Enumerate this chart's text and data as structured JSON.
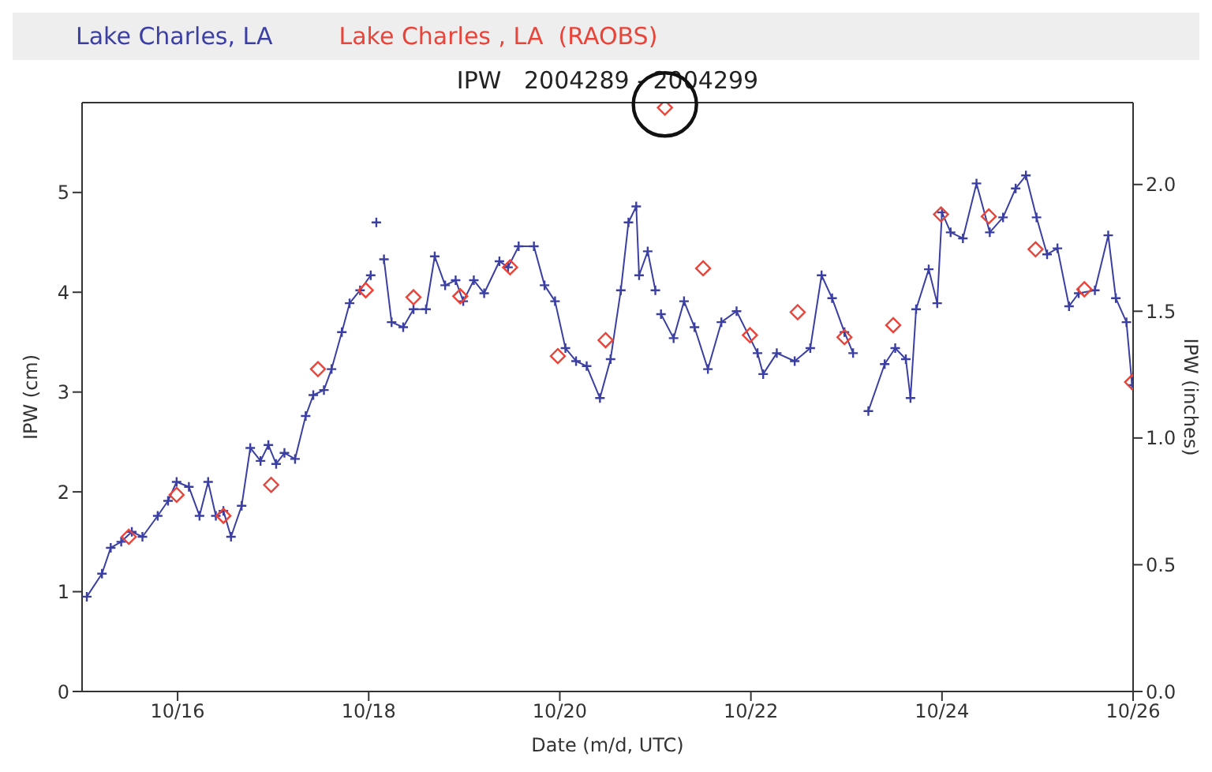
{
  "chart_data": {
    "type": "line",
    "title": "IPW   2004289 - 2004299",
    "xlabel": "Date (m/d, UTC)",
    "ylabel": "IPW (cm)",
    "y2label": "IPW (inches)",
    "legend": "top",
    "xlim": [
      "2004-10-15",
      "2004-10-26"
    ],
    "xticks": [
      {
        "value": "2004-10-16",
        "label": "10/16"
      },
      {
        "value": "2004-10-18",
        "label": "10/18"
      },
      {
        "value": "2004-10-20",
        "label": "10/20"
      },
      {
        "value": "2004-10-22",
        "label": "10/22"
      },
      {
        "value": "2004-10-24",
        "label": "10/24"
      },
      {
        "value": "2004-10-26",
        "label": "10/26"
      }
    ],
    "ylim": [
      0,
      5.9
    ],
    "yticks": [
      0,
      1,
      2,
      3,
      4,
      5
    ],
    "y2lim": [
      0,
      2.323
    ],
    "y2ticks": [
      {
        "value": 0,
        "label": "0.0"
      },
      {
        "value": 0.5,
        "label": "0.5"
      },
      {
        "value": 1,
        "label": "1.0"
      },
      {
        "value": 1.5,
        "label": "1.5"
      },
      {
        "value": 2,
        "label": "2.0"
      }
    ],
    "series": [
      {
        "name": "Lake Charles, LA",
        "type": "line",
        "color": "#3b3fa3",
        "marker": "cross",
        "line_style": "solid",
        "x": [
          "2004-10-15T01:12",
          "2004-10-15T05:00",
          "2004-10-15T07:12",
          "2004-10-15T09:50",
          "2004-10-15T12:30",
          "2004-10-15T15:10",
          "2004-10-15T19:00",
          "2004-10-15T21:36",
          "2004-10-15T23:45",
          "2004-10-16T02:50",
          "2004-10-16T05:30",
          "2004-10-16T07:40",
          "2004-10-16T09:36",
          "2004-10-16T11:30",
          "2004-10-16T13:25",
          "2004-10-16T16:05",
          "2004-10-16T18:15",
          "2004-10-16T20:50",
          "2004-10-16T22:48",
          "2004-10-17T00:45",
          "2004-10-17T02:50",
          "2004-10-17T05:30",
          "2004-10-17T08:10",
          "2004-10-17T10:05",
          "2004-10-17T12:45",
          "2004-10-17T14:40",
          "2004-10-17T17:15",
          "2004-10-17T19:12",
          "2004-10-17T21:50",
          "2004-10-18T00:30",
          "2004-10-18T01:12",
          "2004-10-18T01:55",
          "2004-10-18T02:50",
          "2004-10-18T03:50",
          "2004-10-18T05:45",
          "2004-10-18T08:40",
          "2004-10-18T11:15",
          "2004-10-18T14:24",
          "2004-10-18T16:35",
          "2004-10-18T19:12",
          "2004-10-18T21:50",
          "2004-10-18T23:45",
          "2004-10-19T02:24",
          "2004-10-19T05:00",
          "2004-10-19T08:50",
          "2004-10-19T11:00",
          "2004-10-19T13:40",
          "2004-10-19T17:30",
          "2004-10-19T20:10",
          "2004-10-19T22:48",
          "2004-10-20T01:25",
          "2004-10-20T04:05",
          "2004-10-20T06:45",
          "2004-10-20T10:05",
          "2004-10-20T12:45",
          "2004-10-20T15:20",
          "2004-10-20T17:15",
          "2004-10-20T19:12",
          "2004-10-20T19:55",
          "2004-10-20T22:05",
          "2004-10-21T00:00",
          "2004-10-21T00:45",
          "2004-10-21T01:25",
          "2004-10-21T04:35",
          "2004-10-21T07:12",
          "2004-10-21T09:50",
          "2004-10-21T13:12",
          "2004-10-21T16:35",
          "2004-10-21T20:24",
          "2004-10-22T01:40",
          "2004-10-22T03:05",
          "2004-10-22T06:30",
          "2004-10-22T11:00",
          "2004-10-22T14:55",
          "2004-10-22T17:45",
          "2004-10-22T20:24",
          "2004-10-22T23:30",
          "2004-10-23T01:40",
          "2004-10-23T03:36",
          "2004-10-23T05:30",
          "2004-10-23T09:36",
          "2004-10-23T12:15",
          "2004-10-23T14:55",
          "2004-10-23T16:05",
          "2004-10-23T17:30",
          "2004-10-23T20:40",
          "2004-10-23T22:48",
          "2004-10-24T00:00",
          "2004-10-24T02:10",
          "2004-10-24T05:15",
          "2004-10-24T08:40",
          "2004-10-24T12:00",
          "2004-10-24T15:20",
          "2004-10-24T18:30",
          "2004-10-24T21:05",
          "2004-10-24T23:45",
          "2004-10-25T02:24",
          "2004-10-25T05:00",
          "2004-10-25T07:55",
          "2004-10-25T10:20",
          "2004-10-25T14:24",
          "2004-10-25T17:45",
          "2004-10-25T19:40",
          "2004-10-25T22:20",
          "2004-10-25T23:45"
        ],
        "values": [
          0.95,
          1.18,
          1.44,
          1.5,
          1.6,
          1.55,
          1.76,
          1.91,
          2.1,
          2.05,
          1.76,
          2.1,
          1.76,
          1.81,
          1.55,
          1.86,
          2.44,
          2.31,
          2.47,
          2.28,
          2.39,
          2.33,
          2.76,
          2.97,
          3.02,
          3.23,
          3.6,
          3.89,
          4.02,
          4.17,
          null,
          4.7,
          null,
          4.33,
          3.7,
          3.65,
          3.83,
          3.83,
          4.36,
          4.07,
          4.12,
          3.91,
          4.12,
          3.99,
          4.31,
          4.25,
          4.46,
          4.46,
          4.07,
          3.91,
          3.44,
          3.31,
          3.26,
          2.94,
          3.33,
          4.02,
          4.7,
          4.86,
          4.17,
          4.41,
          4.02,
          null,
          3.78,
          3.54,
          3.91,
          3.65,
          3.23,
          3.7,
          3.81,
          3.39,
          3.18,
          3.39,
          3.31,
          3.44,
          4.17,
          3.94,
          3.6,
          3.39,
          null,
          2.81,
          3.28,
          3.44,
          3.33,
          2.94,
          3.83,
          4.23,
          3.89,
          4.8,
          4.6,
          4.54,
          5.09,
          4.6,
          4.75,
          5.04,
          5.17,
          4.75,
          4.38,
          4.44,
          3.86,
          3.99,
          4.02,
          4.57,
          3.94,
          3.7,
          3.07
        ]
      },
      {
        "name": "Lake Charles , LA  (RAOBS)",
        "type": "scatter",
        "color": "#e8443a",
        "marker": "diamond",
        "x": [
          "2004-10-15T11:45",
          "2004-10-15T23:45",
          "2004-10-16T11:30",
          "2004-10-16T23:30",
          "2004-10-17T11:15",
          "2004-10-17T23:15",
          "2004-10-18T11:15",
          "2004-10-18T23:00",
          "2004-10-19T11:30",
          "2004-10-19T23:30",
          "2004-10-20T11:30",
          "2004-10-21T02:24",
          "2004-10-21T12:00",
          "2004-10-21T23:45",
          "2004-10-22T11:45",
          "2004-10-22T23:30",
          "2004-10-23T11:45",
          "2004-10-23T23:45",
          "2004-10-24T11:45",
          "2004-10-24T23:30",
          "2004-10-25T11:45",
          "2004-10-25T23:45"
        ],
        "values": [
          1.55,
          1.97,
          1.76,
          2.07,
          3.23,
          4.02,
          3.95,
          3.96,
          4.25,
          3.36,
          3.52,
          5.85,
          4.24,
          3.57,
          3.8,
          3.55,
          3.67,
          4.78,
          4.76,
          4.43,
          4.03,
          3.1
        ]
      }
    ]
  }
}
